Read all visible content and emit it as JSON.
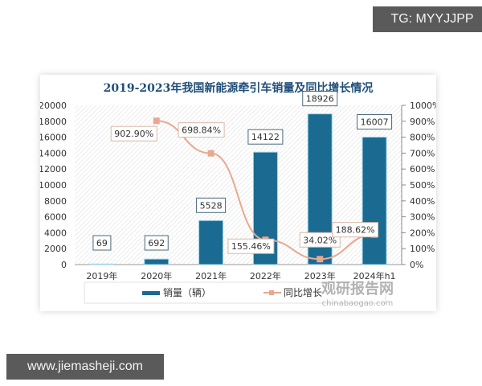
{
  "overlay": {
    "top_right_tag": "TG: MYYJJPP",
    "bottom_left_tag": "www.jiemasheji.com"
  },
  "watermark": {
    "brand": "观研报告网",
    "url": "chinabaogao.com"
  },
  "colors": {
    "bar": "#1b6a91",
    "line": "#e8a890",
    "title": "#1f4e79"
  },
  "chart_data": {
    "type": "bar+line",
    "title": "2019-2023年我国新能源牵引车销量及同比增长情况",
    "categories": [
      "2019年",
      "2020年",
      "2021年",
      "2022年",
      "2023年",
      "2024年h1"
    ],
    "series": [
      {
        "name": "销量（辆）",
        "type": "bar",
        "axis": "left",
        "values": [
          69,
          692,
          5528,
          14122,
          18926,
          16007
        ],
        "labels": [
          "69",
          "692",
          "5528",
          "14122",
          "18926",
          "16007"
        ]
      },
      {
        "name": "同比增长",
        "type": "line",
        "axis": "right",
        "values": [
          null,
          902.9,
          698.84,
          155.46,
          34.02,
          188.62
        ],
        "labels": [
          "",
          "902.90%",
          "698.84%",
          "155.46%",
          "34.02%",
          "188.62%"
        ]
      }
    ],
    "left_axis": {
      "min": 0,
      "max": 20000,
      "step": 2000,
      "ticks": [
        "0",
        "2000",
        "4000",
        "6000",
        "8000",
        "10000",
        "12000",
        "14000",
        "16000",
        "18000",
        "20000"
      ]
    },
    "right_axis": {
      "min": 0,
      "max": 1000,
      "step": 100,
      "ticks": [
        "0%",
        "100%",
        "200%",
        "300%",
        "400%",
        "500%",
        "600%",
        "700%",
        "800%",
        "900%",
        "1000%"
      ]
    },
    "legend": {
      "position": "bottom",
      "entries": [
        "销量（辆）",
        "同比增长"
      ]
    },
    "grid": false
  }
}
